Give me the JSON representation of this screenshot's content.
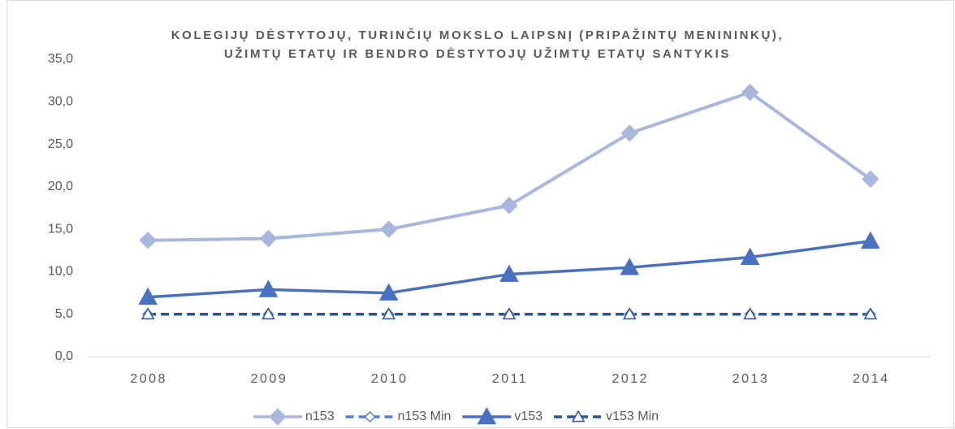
{
  "chart_data": {
    "type": "line",
    "title": [
      "KOLEGIJŲ DĖSTYTOJŲ, TURINČIŲ MOKSLO LAIPSNĮ (PRIPAŽINTŲ MENININKŲ),",
      "UŽIMTŲ ETATŲ IR BENDRO DĖSTYTOJŲ UŽIMTŲ ETATŲ SANTYKIS"
    ],
    "categories": [
      "2008",
      "2009",
      "2010",
      "2011",
      "2012",
      "2013",
      "2014"
    ],
    "series": [
      {
        "name": "n153",
        "color": "#a9b7df",
        "marker": "diamond",
        "filled": true,
        "dashed": false,
        "values": [
          13.7,
          13.9,
          15.0,
          17.8,
          26.3,
          31.1,
          20.9
        ]
      },
      {
        "name": "n153 Min",
        "color": "#5b7fcb",
        "marker": "diamond",
        "filled": false,
        "dashed": true,
        "values": [
          5,
          5,
          5,
          5,
          5,
          5,
          5
        ]
      },
      {
        "name": "v153",
        "color": "#4a70c0",
        "marker": "triangle",
        "filled": true,
        "dashed": false,
        "values": [
          7.0,
          7.9,
          7.5,
          9.7,
          10.5,
          11.7,
          13.6
        ]
      },
      {
        "name": "v153 Min",
        "color": "#2f5290",
        "marker": "triangle",
        "filled": false,
        "dashed": true,
        "values": [
          5,
          5,
          5,
          5,
          5,
          5,
          5
        ]
      }
    ],
    "ylim": [
      0,
      35
    ],
    "yticks": [
      {
        "value": 0,
        "label": "0,0"
      },
      {
        "value": 5,
        "label": "5,0"
      },
      {
        "value": 10,
        "label": "10,0"
      },
      {
        "value": 15,
        "label": "15,0"
      },
      {
        "value": 20,
        "label": "20,0"
      },
      {
        "value": 25,
        "label": "25,0"
      },
      {
        "value": 30,
        "label": "30,0"
      },
      {
        "value": 35,
        "label": "35,0"
      }
    ],
    "grid": false,
    "legend": "bottom"
  }
}
